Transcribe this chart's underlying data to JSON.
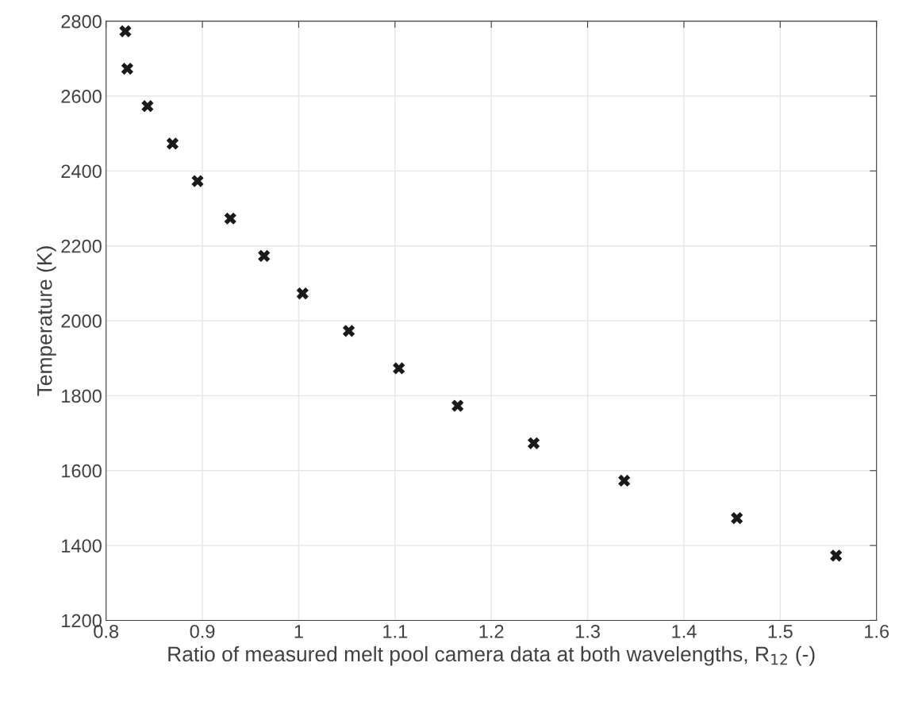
{
  "chart_data": {
    "type": "scatter",
    "xlabel": "Ratio of measured melt pool camera data at both wavelengths, R$_{12}$ (-)",
    "ylabel": "Temperature (K)",
    "x": [
      0.82,
      0.822,
      0.843,
      0.869,
      0.895,
      0.929,
      0.964,
      1.004,
      1.052,
      1.104,
      1.165,
      1.244,
      1.338,
      1.455,
      1.558
    ],
    "series": [
      {
        "color": "#1a1a1a",
        "values": [
          2773,
          2673,
          2573,
          2473,
          2373,
          2273,
          2173,
          2073,
          1973,
          1873,
          1773,
          1673,
          1573,
          1473,
          1373
        ]
      }
    ],
    "marker": "cross",
    "xlim": [
      0.8,
      1.6
    ],
    "xticks": [
      0.8,
      0.9,
      1,
      1.1,
      1.2,
      1.3,
      1.4,
      1.5,
      1.6
    ],
    "ylim": [
      1200,
      2800
    ],
    "yticks": [
      1200,
      1400,
      1600,
      1800,
      2000,
      2200,
      2400,
      2600,
      2800
    ],
    "grid": true,
    "legend": false
  }
}
